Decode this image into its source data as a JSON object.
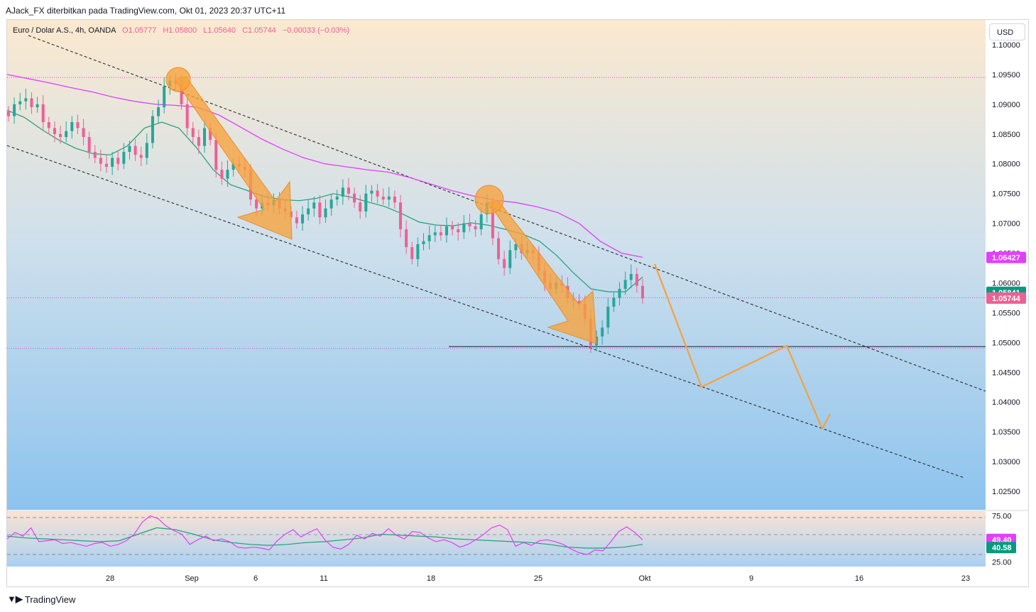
{
  "header": {
    "publisher": "AJack_FX diterbitkan pada TradingView.com, Okt 01, 2023 20:37 UTC+11"
  },
  "legend": {
    "symbol": "Euro / Dolar A.S., 4h, OANDA",
    "open": "O1.05777",
    "high": "H1.05800",
    "low": "L1.05640",
    "close": "C1.05744",
    "change": "−0.00033 (−0.03%)"
  },
  "currency_button": "USD",
  "branding": {
    "name": "TradingView"
  },
  "colors": {
    "up": "#26a69a",
    "down": "#ef5f94",
    "sma_fast": "#1f9e7a",
    "sma_slow": "#e040fb",
    "annotation": "#f7a13b",
    "rsi": "#e040fb"
  },
  "chart_data": [
    {
      "type": "candlestick",
      "symbol": "EURUSD",
      "timeframe": "4h",
      "ylim": [
        1.0225,
        1.1035
      ],
      "y_ticks": [
        "1.10000",
        "1.09500",
        "1.09000",
        "1.08500",
        "1.08000",
        "1.07500",
        "1.07000",
        "1.06500",
        "1.06000",
        "1.05500",
        "1.05000",
        "1.04500",
        "1.04000",
        "1.03500",
        "1.03000",
        "1.02500"
      ],
      "x_ticks": [
        "28",
        "Sep",
        "6",
        "11",
        "18",
        "25",
        "Okt",
        "9",
        "16",
        "23"
      ],
      "price_labels": [
        {
          "value": "1.06427",
          "color": "#e040fb"
        },
        {
          "value": "1.05841",
          "color": "#089981"
        },
        {
          "value": "1.05744",
          "color": "#ef5f94"
        }
      ],
      "horizontal_levels": [
        1.0945,
        1.0575,
        1.049
      ],
      "support_line": 1.0493,
      "series": [
        {
          "name": "close",
          "values": [
            1.088,
            1.09,
            1.0905,
            1.091,
            1.0895,
            1.09,
            1.087,
            1.086,
            1.085,
            1.0845,
            1.0855,
            1.087,
            1.086,
            1.0845,
            1.082,
            1.081,
            1.08,
            1.0795,
            1.081,
            1.08,
            1.082,
            1.083,
            1.0815,
            1.081,
            1.0835,
            1.088,
            1.0895,
            1.093,
            1.094,
            1.0935,
            1.09,
            1.086,
            1.0845,
            1.083,
            1.086,
            1.084,
            1.079,
            1.0775,
            1.079,
            1.08,
            1.0795,
            1.079,
            1.074,
            1.0725,
            1.0735,
            1.073,
            1.074,
            1.0725,
            1.072,
            1.071,
            1.07,
            1.0715,
            1.0725,
            1.0735,
            1.071,
            1.0725,
            1.074,
            1.0745,
            1.076,
            1.075,
            1.0735,
            1.072,
            1.075,
            1.0755,
            1.0745,
            1.074,
            1.0745,
            1.0735,
            1.069,
            1.066,
            1.064,
            1.0665,
            1.067,
            1.068,
            1.0685,
            1.068,
            1.0695,
            1.069,
            1.0685,
            1.07,
            1.0695,
            1.069,
            1.0715,
            1.0735,
            1.0675,
            1.064,
            1.0625,
            1.0655,
            1.0665,
            1.065,
            1.0655,
            1.065,
            1.062,
            1.06,
            1.059,
            1.06,
            1.0595,
            1.0575,
            1.057,
            1.0565,
            1.054,
            1.0495,
            1.051,
            1.0525,
            1.056,
            1.0575,
            1.059,
            1.0605,
            1.0615,
            1.0595,
            1.0574
          ]
        },
        {
          "name": "SMA fast",
          "values": [
            1.089,
            1.0878,
            1.0858,
            1.084,
            1.0826,
            1.0817,
            1.0815,
            1.083,
            1.086,
            1.087,
            1.086,
            1.0828,
            1.079,
            1.0765,
            1.0755,
            1.0745,
            1.074,
            1.0738,
            1.0742,
            1.075,
            1.0744,
            1.0736,
            1.0728,
            1.0716,
            1.0702,
            1.0697,
            1.0696,
            1.0701,
            1.0697,
            1.069,
            1.0682,
            1.067,
            1.0646,
            1.0616,
            1.059,
            1.0585,
            1.0585,
            1.061
          ]
        },
        {
          "name": "SMA slow",
          "values": [
            1.095,
            1.0943,
            1.0936,
            1.0928,
            1.0921,
            1.0912,
            1.0905,
            1.09,
            1.0898,
            1.0895,
            1.0882,
            1.0862,
            1.0842,
            1.0825,
            1.081,
            1.08,
            1.0795,
            1.079,
            1.0786,
            1.0777,
            1.0766,
            1.0755,
            1.0746,
            1.0739,
            1.0735,
            1.0728,
            1.0718,
            1.07,
            1.067,
            1.065,
            1.0643
          ]
        }
      ]
    },
    {
      "type": "line",
      "name": "RSI",
      "ylim": [
        20,
        80
      ],
      "y_ticks": [
        "75.00",
        "25.00"
      ],
      "value_labels": [
        {
          "value": "49.40",
          "color": "#e040fb"
        },
        {
          "value": "40.58",
          "color": "#089981"
        }
      ],
      "series": [
        {
          "name": "RSI",
          "values": [
            50,
            57,
            53,
            62,
            47,
            48,
            49,
            45,
            46,
            44,
            42,
            45,
            46,
            42,
            44,
            48,
            55,
            68,
            75,
            72,
            64,
            59,
            55,
            44,
            49,
            53,
            48,
            50,
            47,
            41,
            40,
            41,
            40,
            38,
            48,
            55,
            60,
            52,
            57,
            61,
            49,
            41,
            39,
            44,
            54,
            50,
            56,
            53,
            61,
            54,
            50,
            58,
            57,
            51,
            47,
            49,
            46,
            41,
            44,
            49,
            55,
            62,
            65,
            60,
            42,
            46,
            43,
            48,
            49,
            47,
            44,
            39,
            35,
            33,
            38,
            37,
            47,
            58,
            63,
            57,
            49
          ]
        },
        {
          "name": "RSI MA",
          "values": [
            53,
            51,
            50,
            49,
            48,
            47,
            48,
            55,
            62,
            60,
            55,
            49,
            46,
            44,
            43,
            44,
            46,
            47,
            49,
            51,
            55,
            54,
            53,
            52,
            50,
            49,
            48,
            47,
            46,
            44,
            41,
            40,
            40,
            41,
            44
          ]
        }
      ]
    }
  ]
}
